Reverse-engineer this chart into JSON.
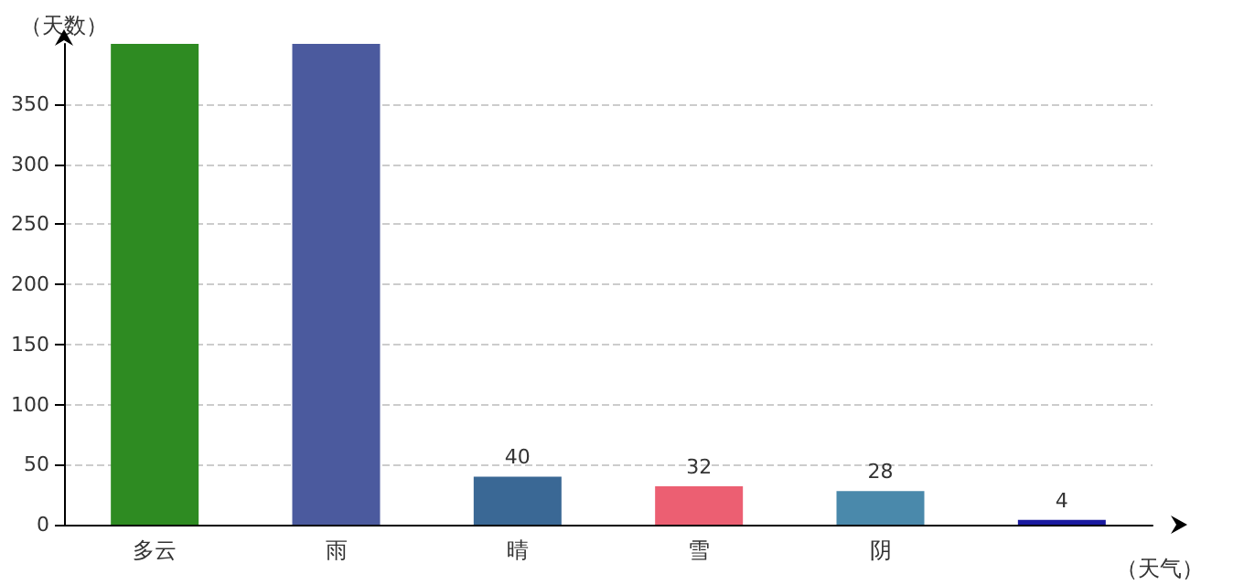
{
  "chart_data": {
    "type": "bar",
    "xlabel": "（天气）",
    "ylabel": "（天数）",
    "categories": [
      "多云",
      "雨",
      "晴",
      "雪",
      "阴",
      null
    ],
    "values": [
      400,
      400,
      40,
      32,
      28,
      4
    ],
    "colors": [
      "#2e8b22",
      "#4b5a9e",
      "#3a6895",
      "#ec5f72",
      "#4a89ab",
      "#1a1aa0"
    ],
    "value_labels": [
      null,
      null,
      "40",
      "32",
      "28",
      "4"
    ],
    "ylim": [
      0,
      400
    ],
    "yticks": [
      0,
      50,
      100,
      150,
      200,
      250,
      300,
      350
    ],
    "grid": "y"
  }
}
